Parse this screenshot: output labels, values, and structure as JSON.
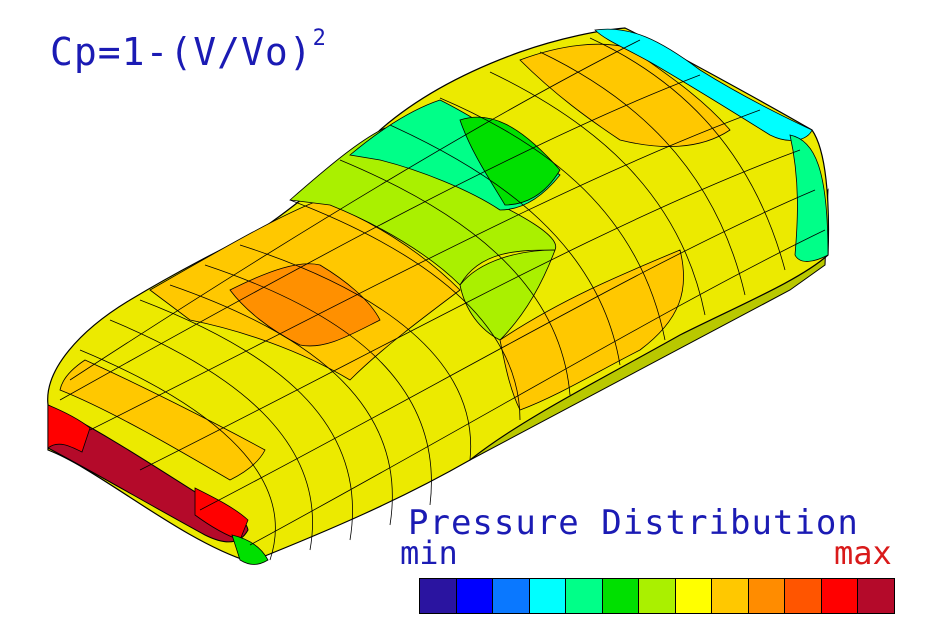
{
  "formula": {
    "base": "Cp=1-(V/Vo)",
    "exponent": "2"
  },
  "legend": {
    "title": "Pressure Distribution",
    "min_label": "min",
    "max_label": "max",
    "scale_colors": [
      "#2a14a0",
      "#0000ff",
      "#0a78ff",
      "#00ffff",
      "#00ff88",
      "#00e000",
      "#aaf000",
      "#ffff00",
      "#ffc800",
      "#ff8c00",
      "#ff5500",
      "#ff0000",
      "#b40a2a"
    ]
  },
  "colors": {
    "text_blue": "#1b1bb4",
    "text_red": "#d91a1a"
  }
}
